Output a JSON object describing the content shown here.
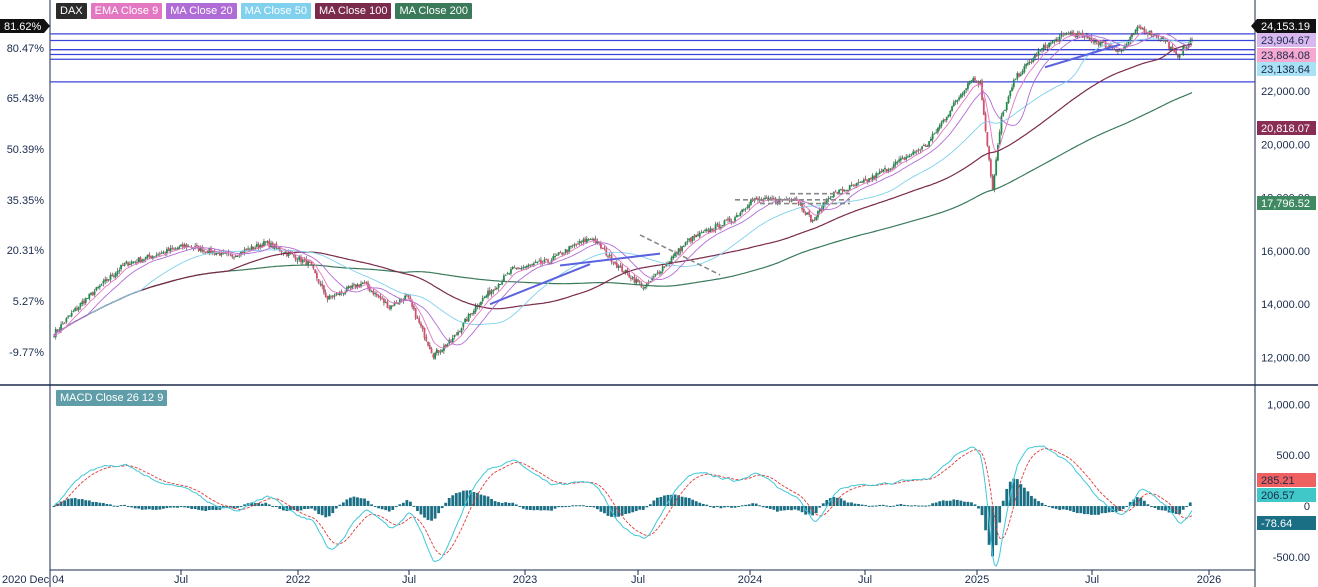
{
  "legend": {
    "symbol": "DAX",
    "indicators": [
      {
        "label": "EMA Close 9",
        "color": "#e377c2"
      },
      {
        "label": "MA Close 20",
        "color": "#b06cd6"
      },
      {
        "label": "MA Close 50",
        "color": "#80d0ee"
      },
      {
        "label": "MA Close 100",
        "color": "#7a2a4a"
      },
      {
        "label": "MA Close 200",
        "color": "#3a7a5a"
      }
    ],
    "macd_label": "MACD Close 26 12 9"
  },
  "price_tags": [
    {
      "label": "24,153.19",
      "value": 24153.19,
      "bg": "#111111",
      "fg": "#ffffff"
    },
    {
      "label": "23,904.67",
      "value": 23904.67,
      "bg": "#d9b8ef",
      "fg": "#1a2b4c"
    },
    {
      "label": "23,884.08",
      "value": 23884.08,
      "bg": "#f7a8d0",
      "fg": "#1a2b4c"
    },
    {
      "label": "23,138.64",
      "value": 23138.64,
      "bg": "#a9e1f5",
      "fg": "#1a2b4c"
    },
    {
      "label": "20,818.07",
      "value": 20818.07,
      "bg": "#8a2d55",
      "fg": "#ffffff"
    },
    {
      "label": "17,796.52",
      "value": 17796.52,
      "bg": "#3f8a62",
      "fg": "#ffffff"
    }
  ],
  "macd_tags": [
    {
      "label": "285.21",
      "value": 285.21,
      "bg": "#f06060",
      "fg": "#1a2b4c"
    },
    {
      "label": "206.57",
      "value": 206.57,
      "bg": "#40c8c8",
      "fg": "#1a2b4c"
    },
    {
      "label": "-78.64",
      "value": -78.64,
      "bg": "#1a6f84",
      "fg": "#ffffff"
    }
  ],
  "chart_data": {
    "type": "candlestick",
    "price_axis": {
      "ticks": [
        "12,000.00",
        "14,000.00",
        "16,000.00",
        "18,000.00",
        "20,000.00",
        "22,000.00"
      ],
      "tick_values": [
        12000,
        14000,
        16000,
        18000,
        20000,
        22000
      ],
      "range": [
        11000,
        24600
      ]
    },
    "percent_axis": {
      "ticks": [
        "81.62%",
        "80.47%",
        "65.43%",
        "50.39%",
        "35.35%",
        "20.31%",
        "5.27%",
        "-9.77%"
      ]
    },
    "macd_axis": {
      "ticks": [
        "1,000.00",
        "500.00",
        "0",
        "-500.00"
      ],
      "tick_values": [
        1000,
        500,
        0,
        -500
      ],
      "range": [
        -560,
        1180
      ]
    },
    "time_axis": {
      "ticks": [
        "2020 Dec 04",
        "Jul",
        "2022",
        "Jul",
        "2023",
        "Jul",
        "2024",
        "Jul",
        "2025",
        "Jul",
        "2026"
      ]
    },
    "horizontal_levels": [
      24153,
      23904,
      23560,
      23380,
      23200,
      22350
    ],
    "anchors": [
      [
        0,
        12900
      ],
      [
        15,
        14000
      ],
      [
        40,
        15500
      ],
      [
        75,
        16200
      ],
      [
        100,
        15800
      ],
      [
        120,
        16300
      ],
      [
        145,
        15500
      ],
      [
        155,
        14200
      ],
      [
        175,
        14800
      ],
      [
        190,
        13900
      ],
      [
        200,
        14300
      ],
      [
        215,
        12100
      ],
      [
        225,
        12600
      ],
      [
        240,
        14000
      ],
      [
        260,
        15300
      ],
      [
        280,
        15600
      ],
      [
        295,
        16200
      ],
      [
        305,
        16500
      ],
      [
        320,
        15400
      ],
      [
        335,
        14600
      ],
      [
        345,
        15400
      ],
      [
        360,
        16400
      ],
      [
        375,
        16900
      ],
      [
        385,
        17200
      ],
      [
        395,
        17900
      ],
      [
        410,
        17900
      ],
      [
        420,
        18000
      ],
      [
        430,
        17100
      ],
      [
        440,
        18100
      ],
      [
        460,
        18600
      ],
      [
        480,
        19400
      ],
      [
        495,
        20000
      ],
      [
        510,
        21500
      ],
      [
        520,
        22500
      ],
      [
        525,
        22300
      ],
      [
        532,
        18300
      ],
      [
        537,
        21000
      ],
      [
        545,
        22500
      ],
      [
        560,
        23600
      ],
      [
        575,
        24200
      ],
      [
        590,
        23900
      ],
      [
        605,
        23500
      ],
      [
        615,
        24400
      ],
      [
        630,
        23900
      ],
      [
        636,
        23300
      ],
      [
        645,
        23900
      ]
    ],
    "n_bars": 646
  }
}
